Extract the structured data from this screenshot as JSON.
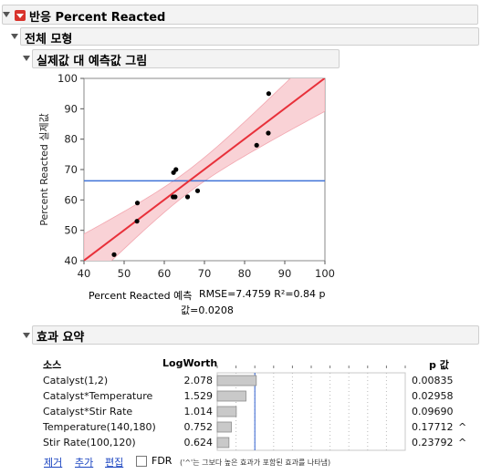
{
  "report": {
    "title": "반응 Percent Reacted",
    "model_title": "전체 모형",
    "plot_title": "실제값 대 예측값 그림",
    "effects_title": "효과 요약"
  },
  "chart_data": {
    "type": "scatter",
    "xlabel": "Percent  Reacted 예측",
    "ylabel": "Percent Reacted 실제값",
    "fit_stats": "RMSE=7.4759 R²=0.84 p 값=0.0208",
    "fit_stats_line1": "RMSE=7.4759 R²=0.84 p",
    "fit_stats_line2": "값=0.0208",
    "xlim": [
      40,
      100
    ],
    "ylim": [
      40,
      100
    ],
    "x_ticks": [
      40,
      50,
      60,
      70,
      80,
      90,
      100
    ],
    "y_ticks": [
      40,
      50,
      60,
      70,
      80,
      90,
      100
    ],
    "points": [
      {
        "x": 47.5,
        "y": 42
      },
      {
        "x": 53.2,
        "y": 53
      },
      {
        "x": 53.3,
        "y": 59
      },
      {
        "x": 62.2,
        "y": 61
      },
      {
        "x": 62.7,
        "y": 61
      },
      {
        "x": 62.3,
        "y": 69
      },
      {
        "x": 62.9,
        "y": 70
      },
      {
        "x": 65.8,
        "y": 61
      },
      {
        "x": 68.3,
        "y": 63
      },
      {
        "x": 83.0,
        "y": 78
      },
      {
        "x": 85.9,
        "y": 82
      },
      {
        "x": 86.0,
        "y": 95
      }
    ],
    "mean_y": 66.3,
    "colors": {
      "fit": "#e8303a",
      "band": "#f9d2d6",
      "mean": "#3f72d8",
      "point": "#000000"
    }
  },
  "effects": {
    "col_source": "소스",
    "col_logworth": "LogWorth",
    "col_p": "p 값",
    "logworth_max": 10,
    "rows": [
      {
        "source": "Catalyst(1,2)",
        "logworth": "2.078",
        "lw": 2.078,
        "p": "0.00835",
        "mark": ""
      },
      {
        "source": "Catalyst*Temperature",
        "logworth": "1.529",
        "lw": 1.529,
        "p": "0.02958",
        "mark": ""
      },
      {
        "source": "Catalyst*Stir Rate",
        "logworth": "1.014",
        "lw": 1.014,
        "p": "0.09690",
        "mark": ""
      },
      {
        "source": "Temperature(140,180)",
        "logworth": "0.752",
        "lw": 0.752,
        "p": "0.17712",
        "mark": "^"
      },
      {
        "source": "Stir Rate(100,120)",
        "logworth": "0.624",
        "lw": 0.624,
        "p": "0.23792",
        "mark": "^"
      }
    ],
    "remove_label": "제거",
    "add_label": "추가",
    "edit_label": "편집",
    "fdr_label": "FDR",
    "footnote": "('^'는 그보다 높은 효과가 포함된 효과를 나타냄)"
  }
}
